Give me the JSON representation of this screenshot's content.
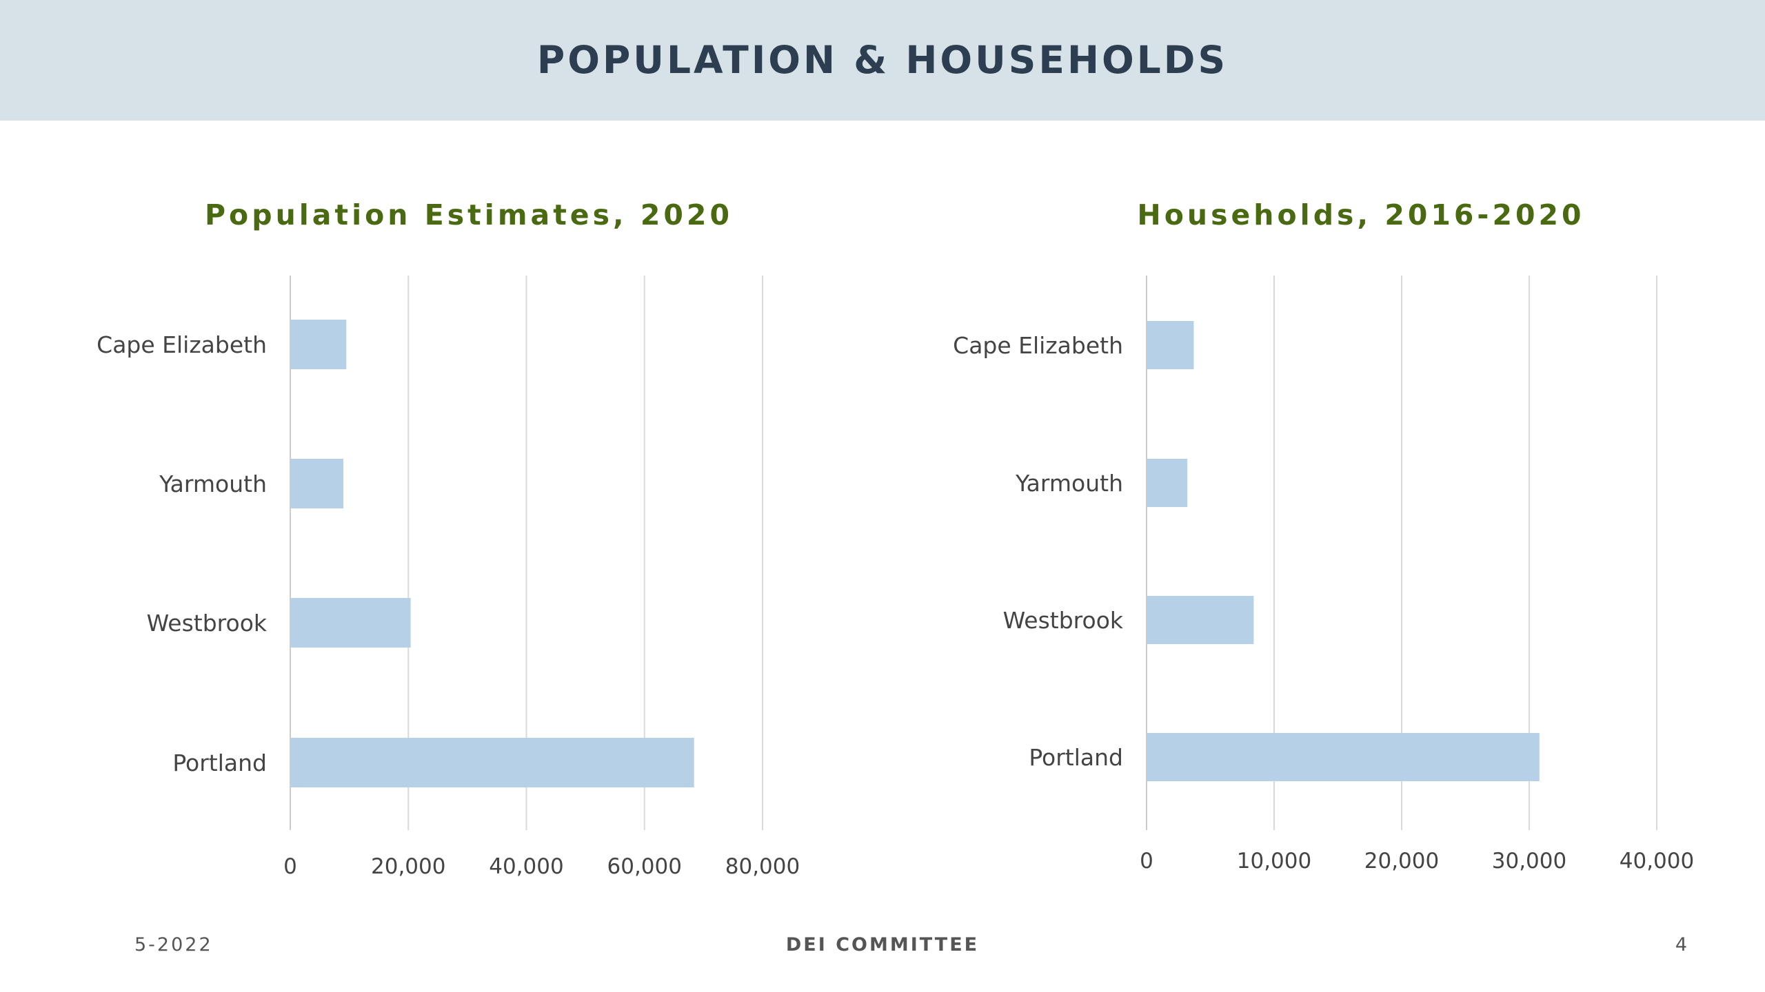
{
  "header": {
    "title": "POPULATION & HOUSEHOLDS"
  },
  "colors": {
    "banner": "#d6e2e8",
    "bar": "#b6d0e8",
    "title_green": "#4a6a12",
    "grid": "#d9d9d9"
  },
  "chart_data": [
    {
      "type": "bar",
      "orientation": "horizontal",
      "title": "Population Estimates, 2020",
      "categories": [
        "Cape Elizabeth",
        "Yarmouth",
        "Westbrook",
        "Portland"
      ],
      "values": [
        9500,
        9000,
        20400,
        68400
      ],
      "xlim": [
        0,
        80000
      ],
      "xticks": [
        0,
        20000,
        40000,
        60000,
        80000
      ],
      "xtick_labels": [
        "0",
        "20,000",
        "40,000",
        "60,000",
        "80,000"
      ],
      "grid": true
    },
    {
      "type": "bar",
      "orientation": "horizontal",
      "title": "Households, 2016-2020",
      "categories": [
        "Cape Elizabeth",
        "Yarmouth",
        "Westbrook",
        "Portland"
      ],
      "values": [
        3700,
        3200,
        8400,
        30800
      ],
      "xlim": [
        0,
        40000
      ],
      "xticks": [
        0,
        10000,
        20000,
        30000,
        40000
      ],
      "xtick_labels": [
        "0",
        "10,000",
        "20,000",
        "30,000",
        "40,000"
      ],
      "grid": true
    }
  ],
  "footer": {
    "date": "5-2022",
    "center": "DEI COMMITTEE",
    "page": "4"
  }
}
